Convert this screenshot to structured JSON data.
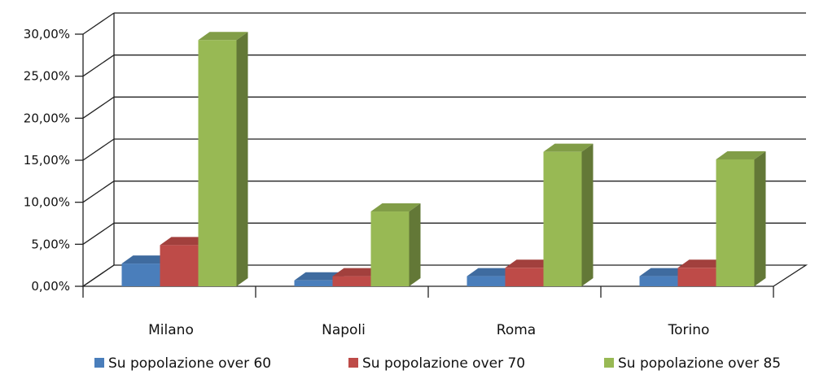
{
  "chart_data": {
    "type": "bar",
    "categories": [
      "Milano",
      "Napoli",
      "Roma",
      "Torino"
    ],
    "series": [
      {
        "name": "Su popolazione over 60",
        "values": [
          2.7,
          0.7,
          1.2,
          1.2
        ],
        "color": "#4a7ebb"
      },
      {
        "name": "Su popolazione over 70",
        "values": [
          4.9,
          1.2,
          2.2,
          2.2
        ],
        "color": "#be4b48"
      },
      {
        "name": "Su popolazione over 85",
        "values": [
          29.3,
          8.9,
          16.0,
          15.1
        ],
        "color": "#98b954"
      }
    ],
    "y_ticks": [
      "0,00%",
      "5,00%",
      "10,00%",
      "15,00%",
      "20,00%",
      "25,00%",
      "30,00%"
    ],
    "ylim": [
      0,
      30
    ],
    "grid": true,
    "style": "3d-clustered-column",
    "legend_position": "bottom"
  }
}
